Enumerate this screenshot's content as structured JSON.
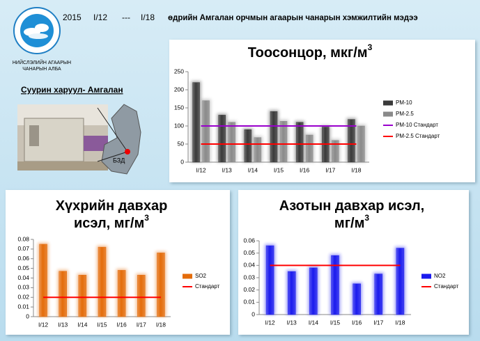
{
  "header": {
    "year": "2015",
    "from": "I/12",
    "dash": "---",
    "to": "I/18",
    "text": "өдрийн Амгалан орчмын агаарын чанарын хэмжилтийн мэдээ"
  },
  "logo": {
    "line1": "НИЙСЛЭЛИЙН АГААРЫН",
    "line2": "ЧАНАРЫН АЛБА"
  },
  "station": {
    "label": "Суурин харуул- Амгалан",
    "district": "БЗД"
  },
  "chart_data": [
    {
      "type": "bar",
      "title": [
        "Тоосонцор, мкг/м"
      ],
      "title_sup": "3",
      "categories": [
        "I/12",
        "I/13",
        "I/14",
        "I/15",
        "I/16",
        "I/17",
        "I/18"
      ],
      "ylim": [
        0,
        250
      ],
      "yticks": [
        0,
        50,
        100,
        150,
        200,
        250
      ],
      "series": [
        {
          "name": "PM-10",
          "type": "bar",
          "color": "#3a3a3a",
          "values": [
            220,
            130,
            90,
            140,
            110,
            97,
            118
          ]
        },
        {
          "name": "PM-2.5",
          "type": "bar",
          "color": "#8a8a8a",
          "values": [
            170,
            110,
            68,
            113,
            75,
            60,
            100
          ]
        },
        {
          "name": "PM-10 Стандарт",
          "type": "line",
          "color": "#9900cc",
          "values": [
            100,
            100,
            100,
            100,
            100,
            100,
            100
          ]
        },
        {
          "name": "PM-2.5 Стандарт",
          "type": "line",
          "color": "#ff0000",
          "values": [
            50,
            50,
            50,
            50,
            50,
            50,
            50
          ]
        }
      ]
    },
    {
      "type": "bar",
      "title": [
        "Хүхрийн давхар",
        "исэл, мг/м"
      ],
      "title_sup": "3",
      "categories": [
        "I/12",
        "I/13",
        "I/14",
        "I/15",
        "I/16",
        "I/17",
        "I/18"
      ],
      "ylim": [
        0,
        0.08
      ],
      "yticks": [
        0,
        0.01,
        0.02,
        0.03,
        0.04,
        0.05,
        0.06,
        0.07,
        0.08
      ],
      "series": [
        {
          "name": "SO2",
          "type": "bar",
          "color": "#e46c0a",
          "values": [
            0.075,
            0.047,
            0.043,
            0.072,
            0.048,
            0.043,
            0.066
          ]
        },
        {
          "name": "Стандарт",
          "type": "line",
          "color": "#ff0000",
          "values": [
            0.02,
            0.02,
            0.02,
            0.02,
            0.02,
            0.02,
            0.02
          ]
        }
      ]
    },
    {
      "type": "bar",
      "title": [
        "Азотын давхар исэл,",
        "мг/м"
      ],
      "title_sup": "3",
      "categories": [
        "I/12",
        "I/13",
        "I/14",
        "I/15",
        "I/16",
        "I/17",
        "I/18"
      ],
      "ylim": [
        0,
        0.06
      ],
      "yticks": [
        0,
        0.01,
        0.02,
        0.03,
        0.04,
        0.05,
        0.06
      ],
      "series": [
        {
          "name": "NO2",
          "type": "bar",
          "color": "#1a1aee",
          "values": [
            0.056,
            0.035,
            0.038,
            0.048,
            0.025,
            0.033,
            0.054
          ]
        },
        {
          "name": "Стандарт",
          "type": "line",
          "color": "#ff0000",
          "values": [
            0.04,
            0.04,
            0.04,
            0.04,
            0.04,
            0.04,
            0.04
          ]
        }
      ]
    }
  ]
}
